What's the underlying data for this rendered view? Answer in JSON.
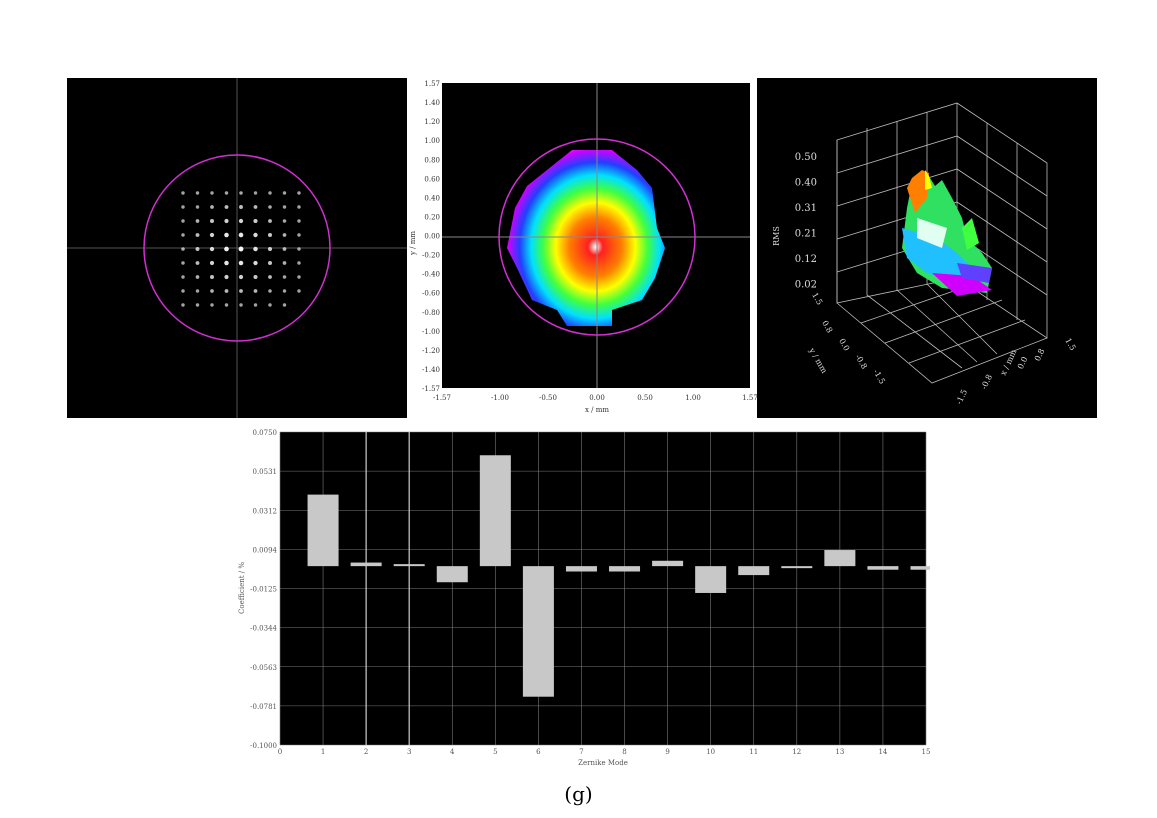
{
  "caption": "(g)",
  "wavefront": {
    "yaxis_label": "y / mm",
    "xaxis_label": "x / mm",
    "y_ticks": [
      "1.57",
      "1.40",
      "1.20",
      "1.00",
      "0.80",
      "0.60",
      "0.40",
      "0.20",
      "0.00",
      "-0.20",
      "-0.40",
      "-0.60",
      "-0.80",
      "-1.00",
      "-1.20",
      "-1.40",
      "-1.57"
    ],
    "x_ticks": [
      "-1.57",
      "-1.00",
      "-0.50",
      "0.00",
      "0.50",
      "1.00",
      "1.57"
    ]
  },
  "surface3d": {
    "z_label": "RMS",
    "z_ticks": [
      "0.50",
      "0.40",
      "0.31",
      "0.21",
      "0.12",
      "0.02"
    ],
    "y_label": "y / mm",
    "y_ticks": [
      "1.5",
      "0.8",
      "0.0",
      "-0.8",
      "-1.5"
    ],
    "x_label": "x / mm",
    "x_ticks": [
      "0.8",
      "0.0",
      "-0.8",
      "-1.5"
    ],
    "x_end_tick": "1.5"
  },
  "chart_data": {
    "type": "bar",
    "xlabel": "Zernike Mode",
    "ylabel": "Coefficient / %",
    "xlim": [
      0,
      15
    ],
    "ylim": [
      -0.1,
      0.075
    ],
    "y_ticks": [
      "0.0750",
      "0.0531",
      "0.0312",
      "0.0094",
      "-0.0125",
      "-0.0344",
      "-0.0563",
      "-0.0781",
      "-0.1000"
    ],
    "x_ticks": [
      "0",
      "1",
      "2",
      "3",
      "4",
      "5",
      "6",
      "7",
      "8",
      "9",
      "10",
      "11",
      "12",
      "13",
      "14",
      "15"
    ],
    "categories": [
      "1",
      "2",
      "3",
      "4",
      "5",
      "6",
      "7",
      "8",
      "9",
      "10",
      "11",
      "12",
      "13",
      "14",
      "15"
    ],
    "values": [
      0.04,
      0.002,
      0.0,
      -0.009,
      0.062,
      -0.073,
      -0.003,
      -0.003,
      0.003,
      -0.015,
      -0.005,
      -0.001,
      0.009,
      -0.002,
      -0.002
    ],
    "grid": true,
    "colors": {
      "background": "#000000",
      "bar": "#c8c8c8",
      "grid": "#7a7a7a",
      "axis_text": "#555555"
    }
  }
}
